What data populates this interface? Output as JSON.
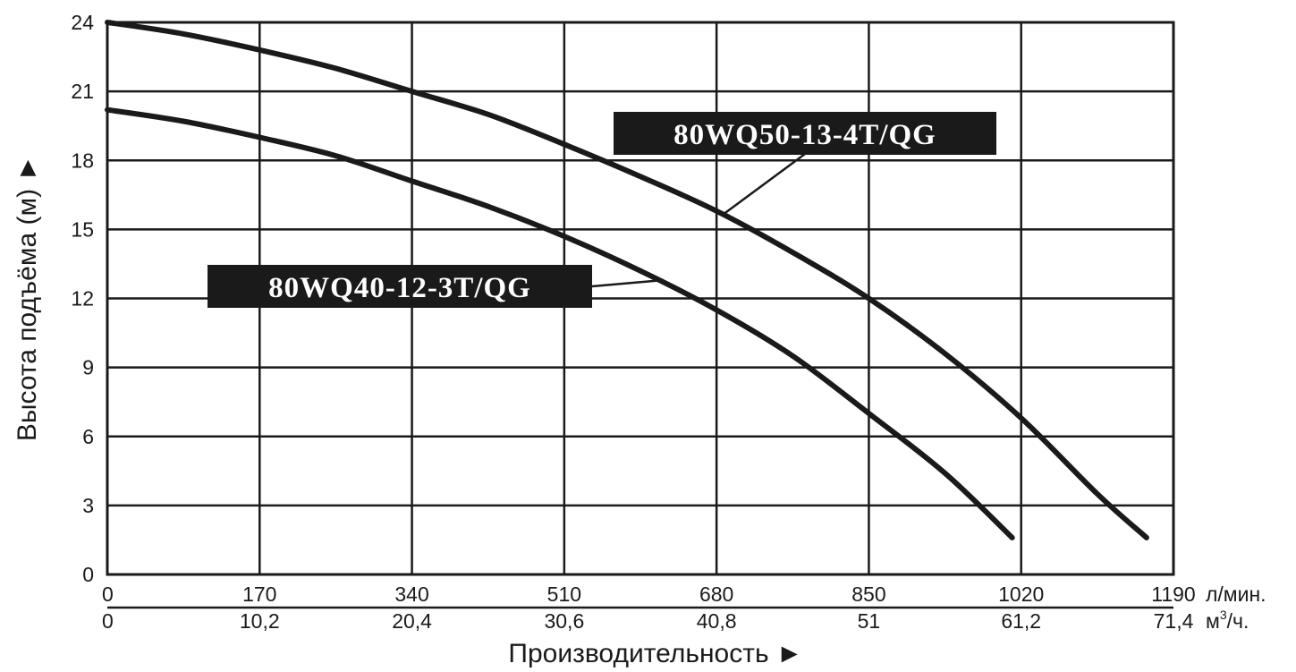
{
  "chart_data": {
    "type": "line",
    "title": "",
    "xlabel": "Производительность ►",
    "ylabel": "Высота подъёма (м) ►",
    "x_unit_primary": "л/мин.",
    "x_unit_secondary_base": "м",
    "x_unit_secondary_sup": "3",
    "x_unit_secondary_tail": "/ч.",
    "xlim": [
      0,
      1190
    ],
    "ylim": [
      0,
      24
    ],
    "grid": true,
    "xticks_primary": [
      "0",
      "170",
      "340",
      "510",
      "680",
      "850",
      "1020",
      "1190"
    ],
    "xticks_secondary": [
      "0",
      "10,2",
      "20,4",
      "30,6",
      "40,8",
      "51",
      "61,2",
      "71,4"
    ],
    "yticks": [
      "0",
      "3",
      "6",
      "9",
      "12",
      "15",
      "18",
      "21",
      "24"
    ],
    "series": [
      {
        "name": "80WQ50-13-4T/QG",
        "x": [
          0,
          85,
          170,
          255,
          340,
          425,
          510,
          595,
          680,
          765,
          850,
          935,
          1020,
          1105,
          1160
        ],
        "y": [
          24,
          23.5,
          22.8,
          22.0,
          21.0,
          20.0,
          18.7,
          17.3,
          15.8,
          14.0,
          12.0,
          9.6,
          6.8,
          3.5,
          1.6
        ]
      },
      {
        "name": "80WQ40-12-3T/QG",
        "x": [
          0,
          85,
          170,
          255,
          340,
          425,
          510,
          595,
          680,
          765,
          850,
          935,
          1010
        ],
        "y": [
          20.2,
          19.7,
          19.0,
          18.2,
          17.1,
          16.0,
          14.7,
          13.2,
          11.5,
          9.5,
          7.0,
          4.4,
          1.6
        ]
      }
    ]
  }
}
